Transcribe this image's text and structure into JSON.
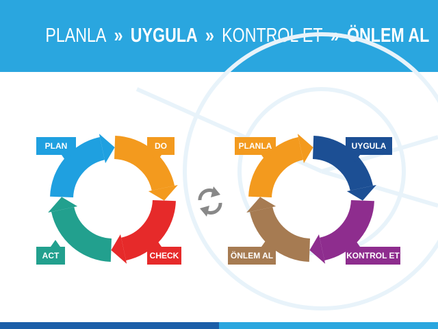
{
  "header": {
    "title": [
      "PLANLA",
      "»",
      "UYGULA",
      "»",
      "KONTROL ET",
      "»",
      "ÖNLEM AL"
    ]
  },
  "cycles": [
    {
      "steps": [
        "PLAN",
        "DO",
        "CHECK",
        "ACT"
      ]
    },
    {
      "steps": [
        "PLANLA",
        "UYGULA",
        "KONTROL ET",
        "ÖNLEM AL"
      ]
    }
  ]
}
